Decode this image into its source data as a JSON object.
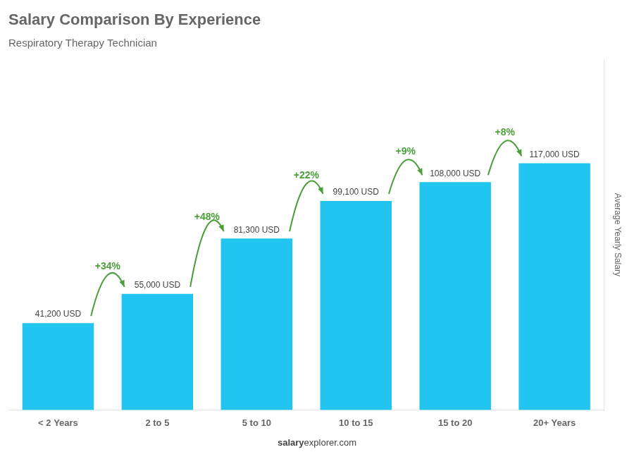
{
  "chart_data": {
    "type": "bar",
    "title": "Salary Comparison By Experience",
    "subtitle": "Respiratory Therapy Technician",
    "categories": [
      "< 2 Years",
      "2 to 5",
      "5 to 10",
      "10 to 15",
      "15 to 20",
      "20+ Years"
    ],
    "values": [
      41200,
      55000,
      81300,
      99100,
      108000,
      117000
    ],
    "value_labels": [
      "41,200 USD",
      "55,000 USD",
      "81,300 USD",
      "99,100 USD",
      "108,000 USD",
      "117,000 USD"
    ],
    "data_labels": true,
    "color": "#22c5f0",
    "ylabel": "Average Yearly Salary",
    "ylim": [
      0,
      166140
    ],
    "tick_labels": "x",
    "grid": false,
    "annotations": [
      {
        "text": "+34%",
        "between": [
          "< 2 Years",
          "2 to 5"
        ]
      },
      {
        "text": "+48%",
        "between": [
          "2 to 5",
          "5 to 10"
        ]
      },
      {
        "text": "+22%",
        "between": [
          "5 to 10",
          "10 to 15"
        ]
      },
      {
        "text": "+9%",
        "between": [
          "10 to 15",
          "15 to 20"
        ]
      },
      {
        "text": "+8%",
        "between": [
          "15 to 20",
          "20+ Years"
        ]
      },
      {
        "text": "salary"
      },
      {
        "text": "explorer.com"
      }
    ]
  }
}
